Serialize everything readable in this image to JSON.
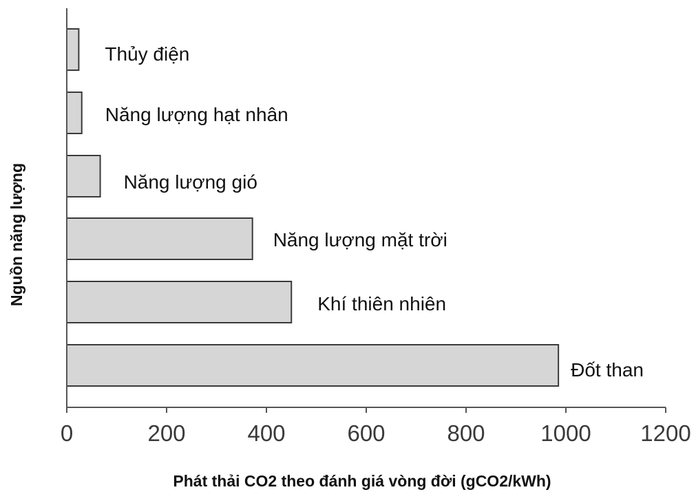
{
  "chart_data": {
    "type": "bar",
    "orientation": "horizontal",
    "categories": [
      "Thủy điện",
      "Năng lượng hạt nhân",
      "Năng lượng gió",
      "Năng lượng mặt trời",
      "Khí thiên nhiên",
      "Đốt than"
    ],
    "values": [
      24,
      30,
      67,
      372,
      450,
      985
    ],
    "xlabel": "Phát thải CO2 theo đánh giá vòng đời (gCO2/kWh)",
    "ylabel": "Nguồn năng lượng",
    "xlim": [
      0,
      1200
    ],
    "xticks": [
      "0",
      "200",
      "400",
      "600",
      "800",
      "1000",
      "1200"
    ],
    "grid": false,
    "legend": "none",
    "colors": {
      "bar_fill": "#d6d6d6",
      "bar_stroke": "#3a3a3a"
    }
  }
}
